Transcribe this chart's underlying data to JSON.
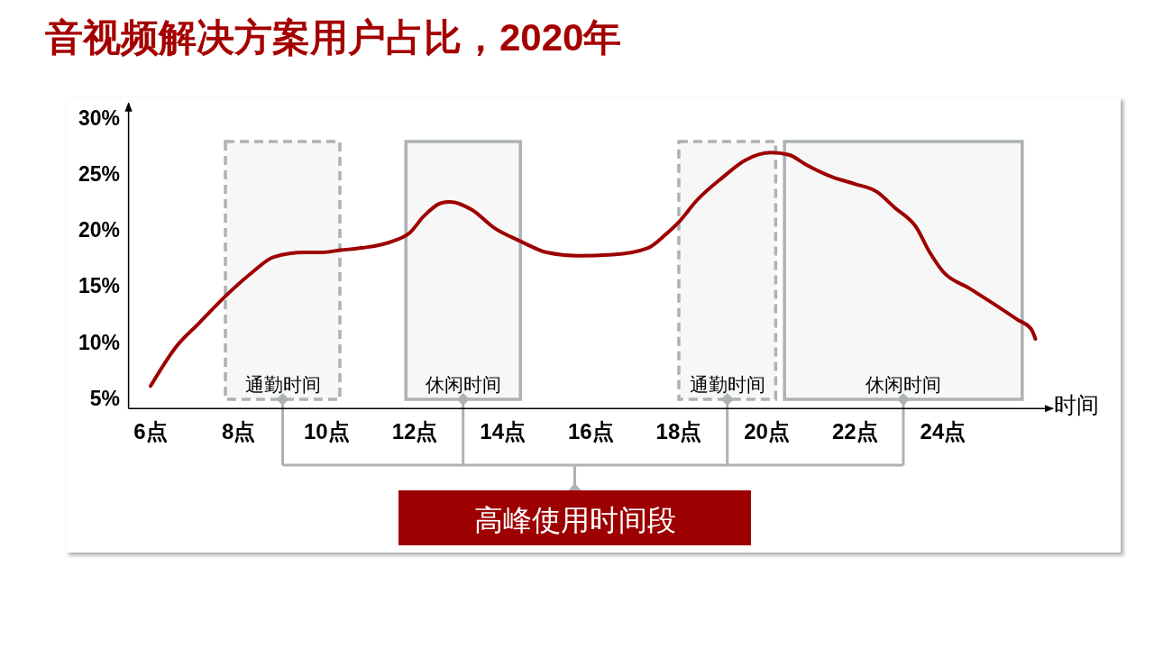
{
  "chart_data": {
    "type": "line",
    "title": "音视频解决方案用户占比，2020年",
    "xlabel": "时间",
    "x": [
      6.0,
      6.6,
      7.1,
      7.7,
      8.3,
      8.8,
      9.5,
      9.9,
      10.3,
      10.8,
      11.5,
      11.9,
      12.2,
      12.6,
      12.8,
      13.3,
      13.8,
      14.4,
      15.0,
      15.7,
      16.5,
      17.3,
      17.7,
      18.0,
      18.4,
      19.0,
      19.5,
      20.1,
      20.5,
      20.9,
      21.5,
      22.0,
      22.5,
      22.9,
      23.4,
      23.7,
      24.0,
      24.6,
      25.2,
      25.7,
      26.0,
      26.1
    ],
    "series": [
      {
        "color": "#9e0000",
        "values": [
          6.1,
          9.7,
          11.7,
          14.1,
          16.2,
          17.6,
          18.0,
          18.0,
          18.2,
          18.4,
          19.0,
          19.8,
          21.2,
          22.4,
          22.5,
          21.8,
          20.2,
          19.0,
          18.0,
          17.7,
          17.8,
          18.4,
          19.6,
          20.7,
          22.6,
          24.7,
          26.2,
          26.9,
          26.7,
          25.8,
          24.7,
          24.1,
          23.4,
          22.0,
          20.2,
          18.0,
          16.3,
          14.8,
          13.3,
          12.0,
          11.2,
          10.3
        ]
      }
    ],
    "xlim": [
      5.5,
      26.5
    ],
    "xticks": [
      {
        "value": 6,
        "label": "6点"
      },
      {
        "value": 8,
        "label": "8点"
      },
      {
        "value": 10,
        "label": "10点"
      },
      {
        "value": 12,
        "label": "12点"
      },
      {
        "value": 14,
        "label": "14点"
      },
      {
        "value": 16,
        "label": "16点"
      },
      {
        "value": 18,
        "label": "18点"
      },
      {
        "value": 20,
        "label": "20点"
      },
      {
        "value": 22,
        "label": "22点"
      },
      {
        "value": 24,
        "label": "24点"
      }
    ],
    "ylim": [
      4.1,
      31.3
    ],
    "yticks": [
      {
        "value": 5,
        "label": "5%"
      },
      {
        "value": 10,
        "label": "10%"
      },
      {
        "value": 15,
        "label": "15%"
      },
      {
        "value": 20,
        "label": "20%"
      },
      {
        "value": 25,
        "label": "25%"
      },
      {
        "value": 30,
        "label": "30%"
      }
    ],
    "bands": [
      {
        "axis": "x",
        "from": 7.7,
        "to": 10.3,
        "label": "通勤时间",
        "color": "#adb2b5"
      },
      {
        "axis": "x",
        "from": 11.8,
        "to": 14.4,
        "label": "休闲时间",
        "color": "#adb2b5"
      },
      {
        "axis": "x",
        "from": 18.0,
        "to": 20.2,
        "label": "通勤时间",
        "color": "#adb2b5"
      },
      {
        "axis": "x",
        "from": 20.4,
        "to": 25.8,
        "label": "休闲时间",
        "color": "#adb2b5"
      }
    ],
    "annotations": [
      "高峰使用时间段"
    ]
  }
}
